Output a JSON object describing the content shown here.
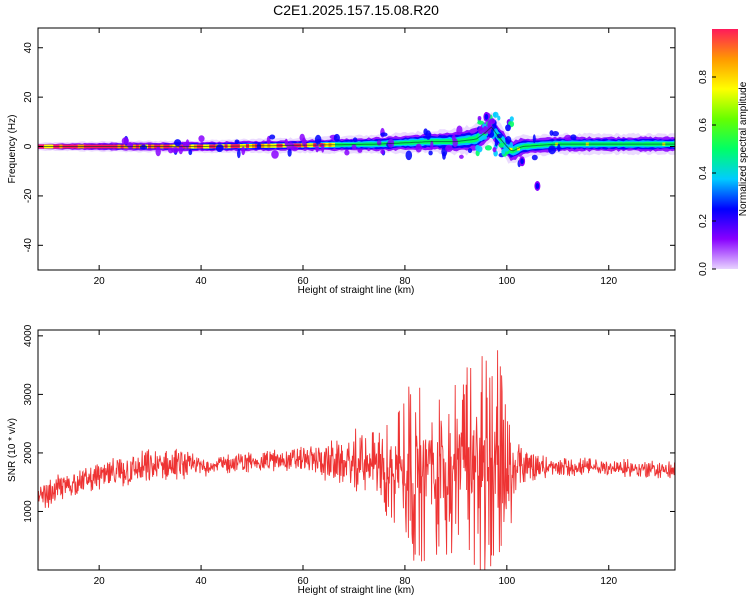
{
  "title": "C2E1.2025.157.15.08.R20",
  "chart_data": [
    {
      "type": "heatmap",
      "xlabel": "Height of straight line (km)",
      "ylabel": "Frequency (Hz)",
      "xlim": [
        8,
        133
      ],
      "ylim": [
        -50,
        48
      ],
      "xticks": [
        20,
        40,
        60,
        80,
        100,
        120
      ],
      "yticks": [
        -40,
        -20,
        0,
        20,
        40
      ],
      "colorbar": {
        "label": "Normalized spectral amplitude",
        "range": [
          0,
          1
        ],
        "ticks": [
          0.0,
          0.2,
          0.4,
          0.6,
          0.8
        ],
        "tick_labels": [
          "0.0",
          "0.2",
          "0.4",
          "0.6",
          "0.8"
        ],
        "colormap": [
          "#e8d4ff",
          "#8800ff",
          "#0000ff",
          "#00ccff",
          "#00ff66",
          "#66ff00",
          "#ffff00",
          "#ff9900",
          "#ff1a5a"
        ]
      },
      "ridge_frequency": {
        "x": [
          8,
          20,
          40,
          60,
          75,
          85,
          90,
          94,
          96,
          97,
          98,
          100,
          101,
          103,
          110,
          120,
          133
        ],
        "y": [
          0,
          0,
          0,
          0.5,
          1,
          2,
          2,
          3,
          6,
          8,
          5,
          0,
          -2,
          0,
          1,
          1,
          1
        ]
      },
      "spread_hz": {
        "x": [
          8,
          20,
          40,
          60,
          80,
          90,
          95,
          100,
          105,
          120,
          133
        ],
        "y": [
          1.5,
          2,
          2.5,
          3,
          4,
          5,
          6,
          6,
          4,
          4,
          4
        ]
      },
      "detached_points": [
        {
          "x": 96,
          "y": 12
        },
        {
          "x": 103,
          "y": -6
        },
        {
          "x": 106,
          "y": -16
        }
      ]
    },
    {
      "type": "line",
      "xlabel": "Height of straight line (km)",
      "ylabel": "SNR (10 * v/v)",
      "xlim": [
        8,
        133
      ],
      "ylim": [
        0,
        4100
      ],
      "xticks": [
        20,
        40,
        60,
        80,
        100,
        120
      ],
      "yticks": [
        1000,
        2000,
        3000,
        4000
      ],
      "line_color": "#ee3333",
      "envelope": {
        "x": [
          8,
          12,
          20,
          30,
          35,
          40,
          50,
          60,
          65,
          70,
          75,
          80,
          85,
          90,
          93,
          96,
          97,
          99,
          100,
          101,
          102,
          105,
          108,
          120,
          133
        ],
        "mean": [
          1200,
          1400,
          1600,
          1750,
          1800,
          1780,
          1850,
          1900,
          1850,
          1800,
          1750,
          1750,
          1750,
          1800,
          1850,
          1900,
          2000,
          1700,
          1500,
          1600,
          1800,
          1800,
          1750,
          1750,
          1700
        ],
        "amp": [
          250,
          300,
          300,
          450,
          350,
          200,
          200,
          250,
          500,
          550,
          700,
          1500,
          1700,
          1700,
          1800,
          2000,
          2100,
          1800,
          1700,
          700,
          500,
          500,
          200,
          150,
          150
        ]
      }
    }
  ]
}
